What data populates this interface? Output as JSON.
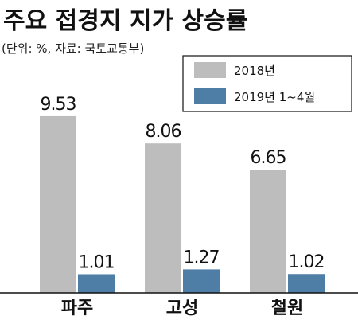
{
  "chart_data": {
    "type": "bar",
    "title": "주요 접경지 지가 상승률",
    "subtitle": "(단위: %, 자료: 국토교통부)",
    "categories": [
      "파주",
      "고성",
      "철원"
    ],
    "series": [
      {
        "name": "2018년",
        "values": [
          9.53,
          8.06,
          6.65
        ],
        "labels": [
          "9.53",
          "8.06",
          "6.65"
        ],
        "color": "#bdbdbd"
      },
      {
        "name": "2019년  1~4월",
        "values": [
          1.01,
          1.27,
          1.02
        ],
        "labels": [
          "1.01",
          "1.27",
          "1.02"
        ],
        "color": "#4e7da6"
      }
    ],
    "legend_position": "top-right",
    "grid": false,
    "ylim": [
      0,
      10
    ]
  }
}
